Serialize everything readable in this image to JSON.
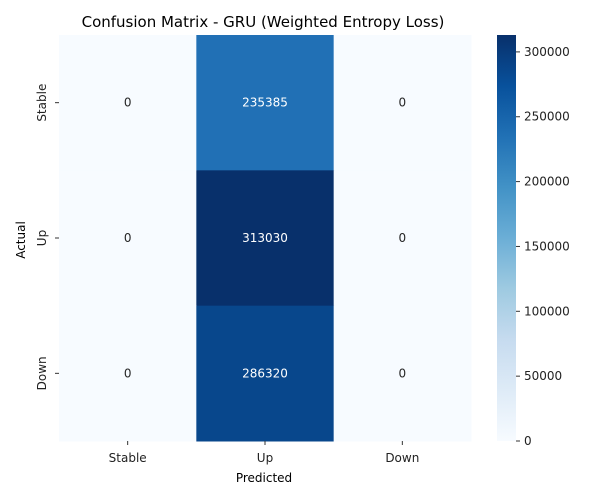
{
  "chart_data": {
    "type": "heatmap",
    "title": "Confusion Matrix - GRU (Weighted Entropy Loss)",
    "xlabel": "Predicted",
    "ylabel": "Actual",
    "x_categories": [
      "Stable",
      "Up",
      "Down"
    ],
    "y_categories": [
      "Stable",
      "Up",
      "Down"
    ],
    "values": [
      [
        0,
        235385,
        0
      ],
      [
        0,
        313030,
        0
      ],
      [
        0,
        286320,
        0
      ]
    ],
    "colorbar": {
      "ticks": [
        0,
        50000,
        100000,
        150000,
        200000,
        250000,
        300000
      ],
      "tick_labels": [
        "0",
        "50000",
        "100000",
        "150000",
        "200000",
        "250000",
        "300000"
      ],
      "range": [
        0,
        313030
      ]
    },
    "colormap": "Blues"
  }
}
